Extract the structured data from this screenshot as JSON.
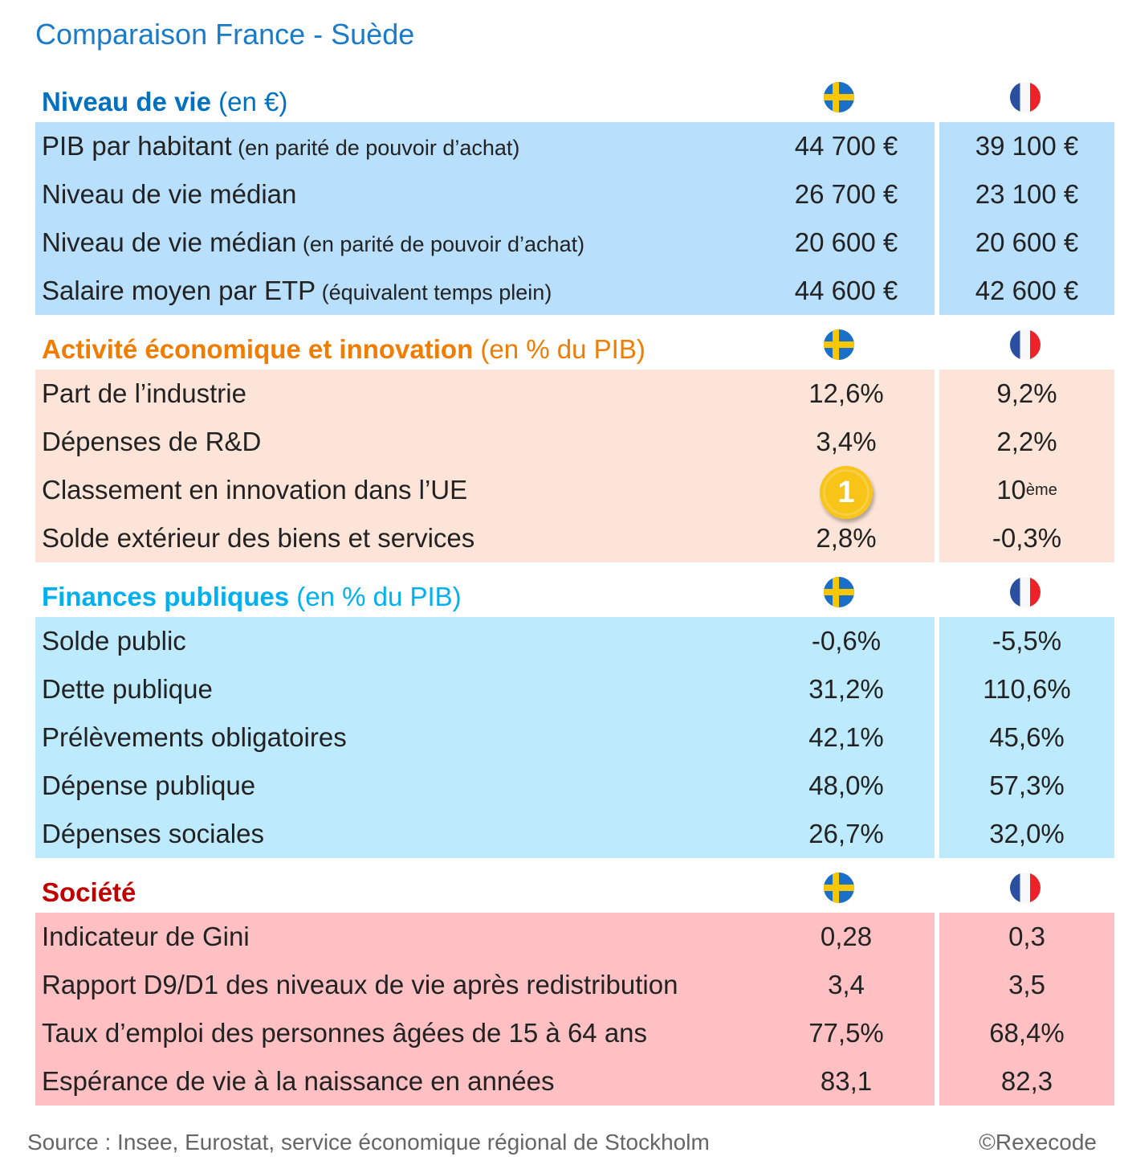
{
  "title": "Comparaison France - Suède",
  "colors": {
    "title": "#1a7bc8",
    "niveau": "#0070c0",
    "activite": "#f07c00",
    "finances": "#00b0f0",
    "societe": "#c00000",
    "bg_niveau": "#b8dffc",
    "bg_activite": "#fde4d8",
    "bg_finances": "#bdeafd",
    "bg_societe": "#fec0c3"
  },
  "flags": {
    "left": "sweden-flag",
    "right": "france-flag"
  },
  "sections": [
    {
      "title": "Niveau de vie",
      "unit": " (en €)",
      "rows": [
        {
          "label": "PIB par habitant",
          "note": " (en parité de pouvoir d’achat)",
          "se": "44 700 €",
          "fr": "39 100 €"
        },
        {
          "label": "Niveau de vie médian",
          "note": "",
          "se": "26 700 €",
          "fr": "23 100 €"
        },
        {
          "label": "Niveau de vie médian",
          "note": " (en parité de pouvoir d’achat)",
          "se": "20 600 €",
          "fr": "20 600 €"
        },
        {
          "label": "Salaire moyen par ETP",
          "note": " (équivalent temps plein)",
          "se": "44 600 €",
          "fr": "42 600 €"
        }
      ]
    },
    {
      "title": "Activité économique et innovation",
      "unit": " (en % du PIB)",
      "rows": [
        {
          "label": "Part de l’industrie",
          "note": "",
          "se": "12,6%",
          "fr": "9,2%"
        },
        {
          "label": "Dépenses de R&D",
          "note": "",
          "se": "3,4%",
          "fr": "2,2%"
        },
        {
          "label": "Classement en innovation dans l’UE",
          "note": "",
          "se": "1",
          "fr": "10",
          "fr_sup": "ème"
        },
        {
          "label": "Solde extérieur des biens et services",
          "note": "",
          "se": "2,8%",
          "fr": "-0,3%"
        }
      ]
    },
    {
      "title": "Finances publiques",
      "unit": " (en % du PIB)",
      "rows": [
        {
          "label": "Solde public",
          "note": "",
          "se": "-0,6%",
          "fr": "-5,5%"
        },
        {
          "label": "Dette publique",
          "note": "",
          "se": "31,2%",
          "fr": "110,6%"
        },
        {
          "label": "Prélèvements obligatoires",
          "note": "",
          "se": "42,1%",
          "fr": "45,6%"
        },
        {
          "label": "Dépense publique",
          "note": "",
          "se": "48,0%",
          "fr": "57,3%"
        },
        {
          "label": "Dépenses sociales",
          "note": "",
          "se": "26,7%",
          "fr": "32,0%"
        }
      ]
    },
    {
      "title": "Société",
      "unit": "",
      "rows": [
        {
          "label": "Indicateur de Gini",
          "note": "",
          "se": "0,28",
          "fr": "0,3"
        },
        {
          "label": "Rapport D9/D1 des niveaux de vie après redistribution",
          "note": "",
          "se": "3,4",
          "fr": "3,5"
        },
        {
          "label": "Taux d’emploi des personnes âgées de 15 à 64 ans",
          "note": "",
          "se": "77,5%",
          "fr": "68,4%"
        },
        {
          "label": "Espérance de vie à la naissance en années",
          "note": "",
          "se": "83,1",
          "fr": "82,3"
        }
      ]
    }
  ],
  "source": "Source :  Insee, Eurostat, service économique régional de Stockholm",
  "copyright": "©Rexecode"
}
